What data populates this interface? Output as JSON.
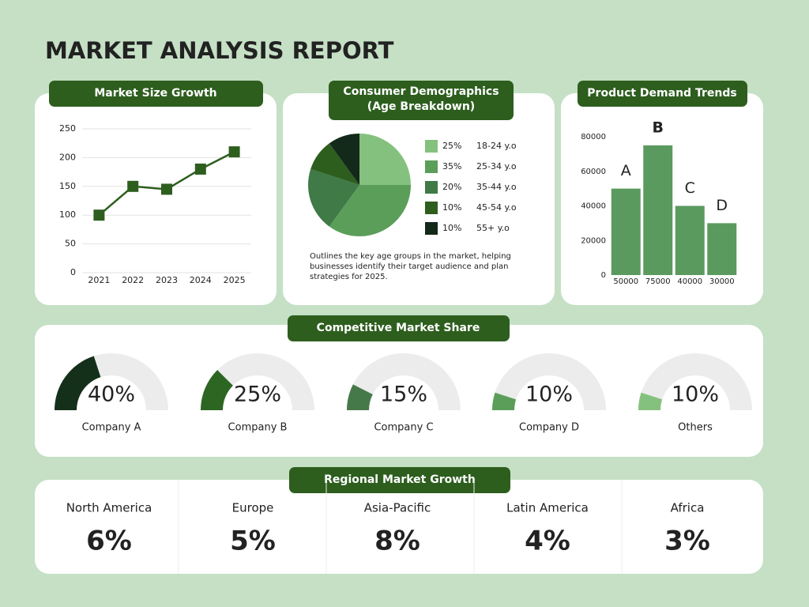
{
  "title": "MARKET ANALYSIS REPORT",
  "chart_data": [
    {
      "type": "line",
      "title": "Market Size Growth",
      "categories": [
        "2021",
        "2022",
        "2023",
        "2024",
        "2025"
      ],
      "values": [
        100,
        150,
        145,
        180,
        210
      ],
      "color": "#2d5e1e",
      "ylim": [
        0,
        250
      ],
      "yticks": [
        0,
        50,
        100,
        150,
        200,
        250
      ],
      "grid": true
    },
    {
      "type": "pie",
      "title": "Consumer Demographics",
      "subtitle": "(Age Breakdown)",
      "categories": [
        "18-24 y.o",
        "25-34 y.o",
        "35-44 y.o",
        "45-54 y.o",
        "55+ y.o"
      ],
      "values": [
        25,
        35,
        20,
        10,
        10
      ],
      "value_labels": [
        "25%",
        "35%",
        "20%",
        "10%",
        "10%"
      ],
      "colors": [
        "#85c17e",
        "#5a9e5a",
        "#3f7a47",
        "#2d5e1e",
        "#13291a"
      ],
      "annotation": "Outlines the key age groups in the market, helping businesses identify their target audience and plan strategies for 2025."
    },
    {
      "type": "bar",
      "title": "Product Demand Trends",
      "categories": [
        "A",
        "B",
        "C",
        "D"
      ],
      "values": [
        50000,
        75000,
        40000,
        30000
      ],
      "color": "#5a9a5e",
      "ylim": [
        0,
        80000
      ],
      "yticks": [
        0,
        20000,
        40000,
        60000,
        80000
      ],
      "grid": false
    },
    {
      "type": "gauge",
      "title": "Competitive Market Share",
      "categories": [
        "Company A",
        "Company B",
        "Company C",
        "Company D",
        "Others"
      ],
      "values": [
        40,
        25,
        15,
        10,
        10
      ],
      "value_labels": [
        "40%",
        "25%",
        "15%",
        "10%",
        "10%"
      ],
      "colors": [
        "#14301a",
        "#2d6622",
        "#46794a",
        "#5a9e5a",
        "#85c17e"
      ],
      "ylim": [
        0,
        100
      ]
    },
    {
      "type": "stat",
      "title": "Regional Market Growth",
      "categories": [
        "North America",
        "Europe",
        "Asia-Pacific",
        "Latin America",
        "Africa"
      ],
      "values": [
        6,
        5,
        8,
        4,
        3
      ],
      "value_labels": [
        "6%",
        "5%",
        "8%",
        "4%",
        "3%"
      ],
      "color": "#2d5e1e"
    }
  ]
}
